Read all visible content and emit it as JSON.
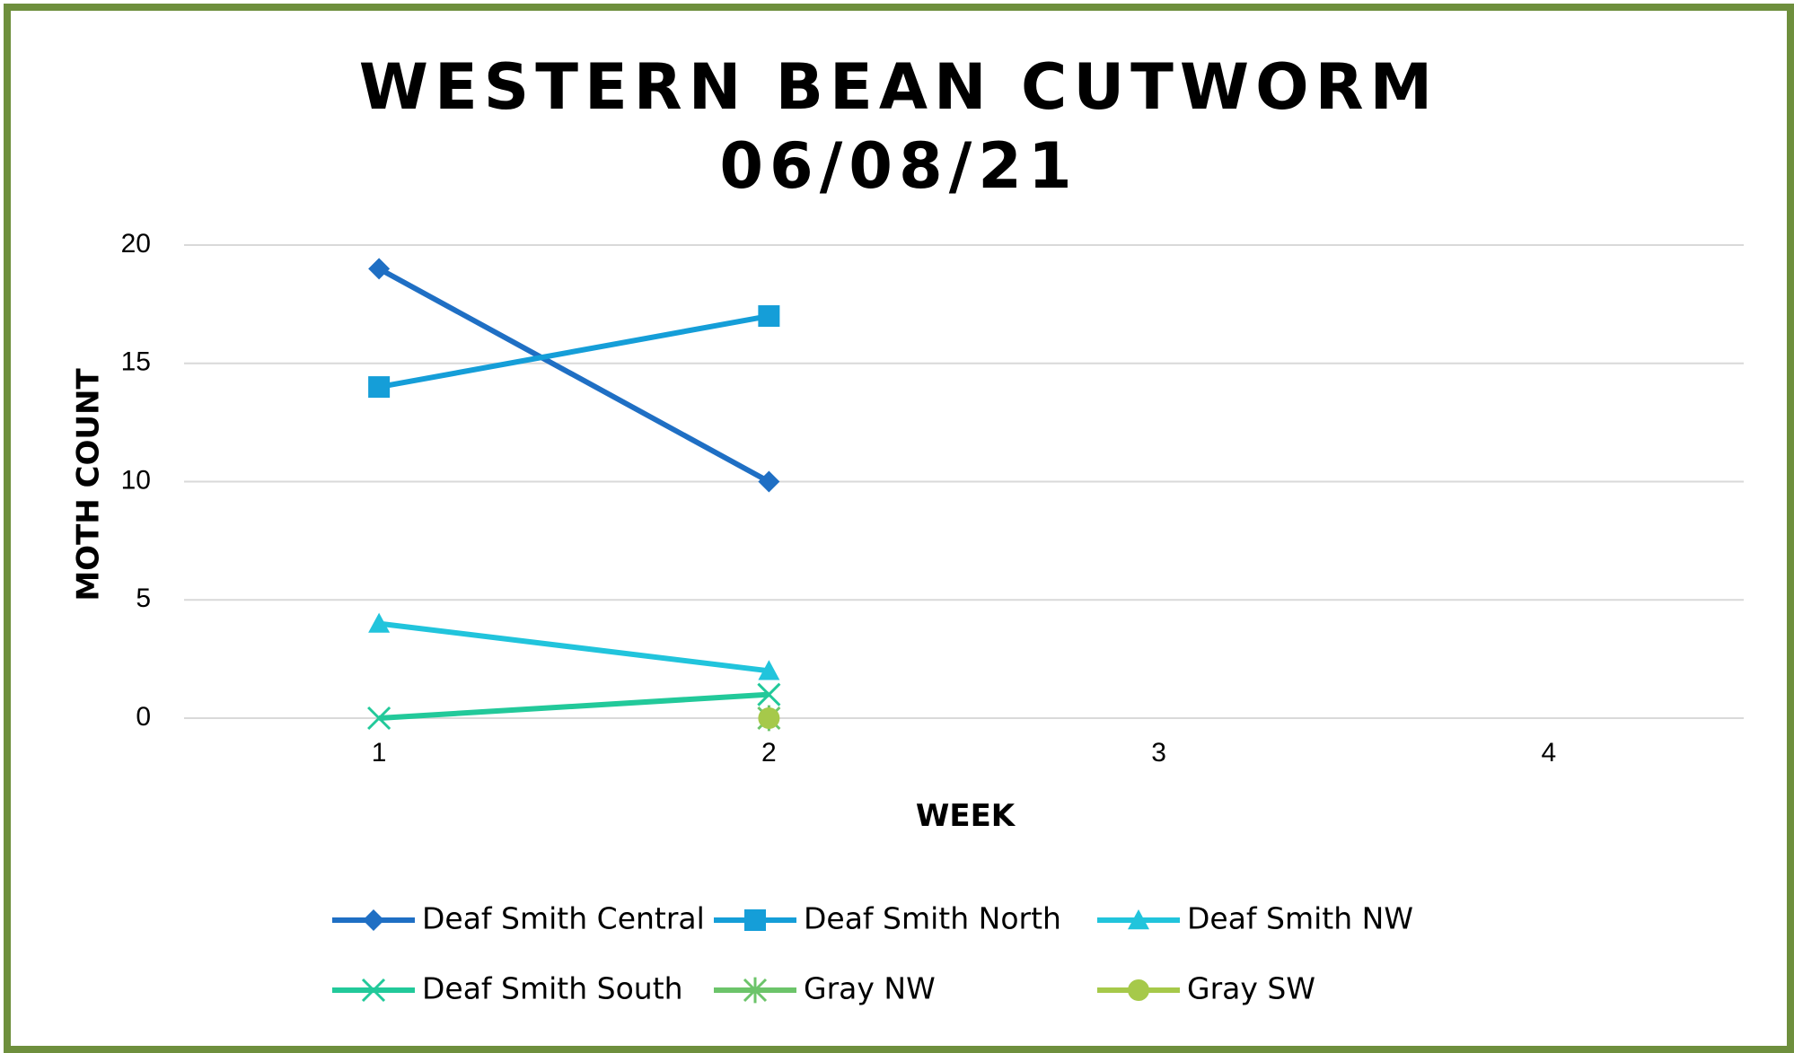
{
  "chart_data": {
    "type": "line",
    "title": "WESTERN BEAN CUTWORM",
    "subtitle": "06/08/21",
    "xlabel": "WEEK",
    "ylabel": "MOTH COUNT",
    "categories": [
      "1",
      "2",
      "3",
      "4"
    ],
    "ylim": [
      0,
      20
    ],
    "yticks": [
      0,
      5,
      10,
      15,
      20
    ],
    "grid": true,
    "legend_position": "bottom",
    "series": [
      {
        "name": "Deaf Smith Central",
        "values": [
          19,
          10,
          null,
          null
        ],
        "color": "#1f6fc4",
        "marker": "diamond"
      },
      {
        "name": "Deaf Smith North",
        "values": [
          14,
          17,
          null,
          null
        ],
        "color": "#159ed8",
        "marker": "square"
      },
      {
        "name": "Deaf Smith NW",
        "values": [
          4,
          2,
          null,
          null
        ],
        "color": "#21c4dc",
        "marker": "triangle"
      },
      {
        "name": "Deaf Smith South",
        "values": [
          0,
          1,
          null,
          null
        ],
        "color": "#22c99a",
        "marker": "x"
      },
      {
        "name": "Gray NW",
        "values": [
          null,
          0,
          null,
          null
        ],
        "color": "#6cc46a",
        "marker": "star"
      },
      {
        "name": "Gray SW",
        "values": [
          null,
          0,
          null,
          null
        ],
        "color": "#a6c94a",
        "marker": "circle"
      }
    ]
  }
}
